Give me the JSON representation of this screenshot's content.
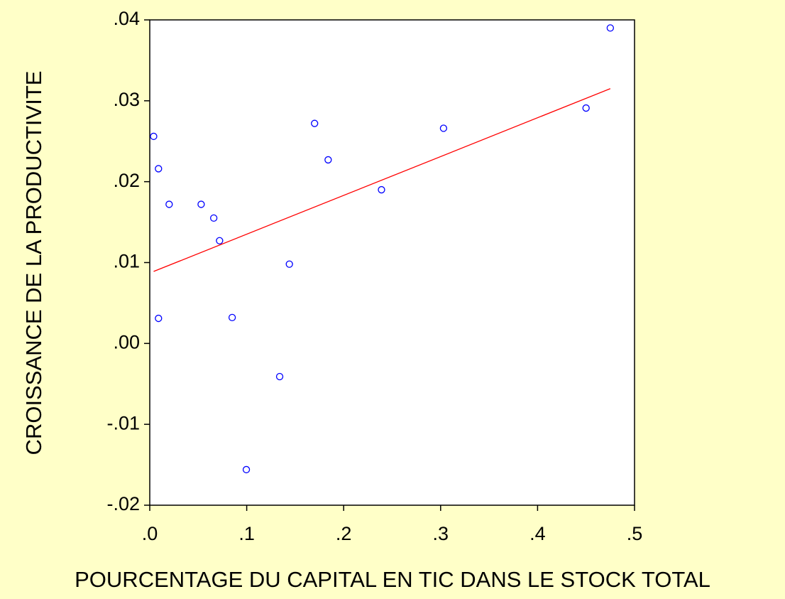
{
  "chart_data": {
    "type": "scatter",
    "xlabel": "POURCENTAGE DU CAPITAL EN TIC DANS LE STOCK TOTAL",
    "ylabel": "CROISSANCE DE LA PRODUCTIVITE",
    "series": [
      {
        "color": "#0000ff",
        "x": [
          0.004,
          0.009,
          0.02,
          0.009,
          0.053,
          0.066,
          0.072,
          0.085,
          0.0996,
          0.134,
          0.144,
          0.17,
          0.184,
          0.239,
          0.303,
          0.45,
          0.475
        ],
        "values": [
          0.0256,
          0.0216,
          0.0172,
          0.0031,
          0.0172,
          0.0155,
          0.0127,
          0.0032,
          -0.0156,
          -0.0041,
          0.0098,
          0.0272,
          0.0227,
          0.019,
          0.0266,
          0.0291,
          0.039
        ]
      }
    ],
    "fit": {
      "color": "#ff0000",
      "x": [
        0.004,
        0.475
      ],
      "values": [
        0.0089,
        0.0315
      ]
    },
    "xlim": [
      0,
      0.5
    ],
    "ylim": [
      -0.02,
      0.04
    ],
    "xticks": [
      {
        "value": 0,
        "label": ".0"
      },
      {
        "value": 0.1,
        "label": ".1"
      },
      {
        "value": 0.2,
        "label": ".2"
      },
      {
        "value": 0.3,
        "label": ".3"
      },
      {
        "value": 0.4,
        "label": ".4"
      },
      {
        "value": 0.5,
        "label": ".5"
      }
    ],
    "yticks": [
      {
        "value": -0.02,
        "label": "-.02"
      },
      {
        "value": -0.01,
        "label": "-.01"
      },
      {
        "value": 0,
        "label": ".00"
      },
      {
        "value": 0.01,
        "label": ".01"
      },
      {
        "value": 0.02,
        "label": ".02"
      },
      {
        "value": 0.03,
        "label": ".03"
      },
      {
        "value": 0.04,
        "label": ".04"
      }
    ]
  }
}
